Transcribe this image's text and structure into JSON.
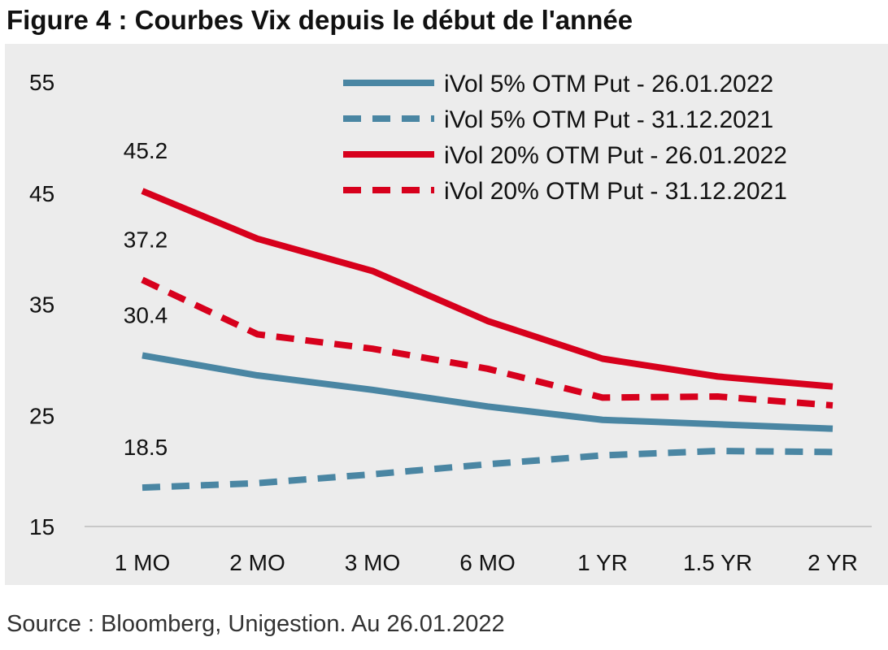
{
  "title": "Figure 4 : Courbes Vix depuis le début de l'année",
  "source": "Source : Bloomberg, Unigestion. Au 26.01.2022",
  "chart_data": {
    "type": "line",
    "categories": [
      "1 MO",
      "2 MO",
      "3 MO",
      "6 MO",
      "1 YR",
      "1.5 YR",
      "2 YR"
    ],
    "ylim": [
      15,
      55
    ],
    "yticks": [
      "15",
      "25",
      "35",
      "45",
      "55"
    ],
    "grid": false,
    "legend_position": "top-right",
    "series": [
      {
        "name": "iVol 5% OTM Put - 26.01.2022",
        "color": "#4a86a3",
        "dash": false,
        "values": [
          30.4,
          28.6,
          27.3,
          25.8,
          24.6,
          24.2,
          23.8
        ]
      },
      {
        "name": "iVol 5% OTM Put - 31.12.2021",
        "color": "#4a86a3",
        "dash": true,
        "values": [
          18.5,
          18.9,
          19.7,
          20.6,
          21.4,
          21.8,
          21.7
        ]
      },
      {
        "name": "iVol 20% OTM Put - 26.01.2022",
        "color": "#d7001c",
        "dash": false,
        "values": [
          45.2,
          40.9,
          38.0,
          33.5,
          30.1,
          28.5,
          27.6
        ]
      },
      {
        "name": "iVol 20% OTM Put - 31.12.2021",
        "color": "#d7001c",
        "dash": true,
        "values": [
          37.2,
          32.3,
          31.0,
          29.2,
          26.6,
          26.7,
          25.9
        ]
      }
    ],
    "annotations": [
      {
        "text": "45.2",
        "series": 2,
        "index": 0
      },
      {
        "text": "37.2",
        "series": 3,
        "index": 0
      },
      {
        "text": "30.4",
        "series": 0,
        "index": 0
      },
      {
        "text": "18.5",
        "series": 1,
        "index": 0
      }
    ]
  }
}
